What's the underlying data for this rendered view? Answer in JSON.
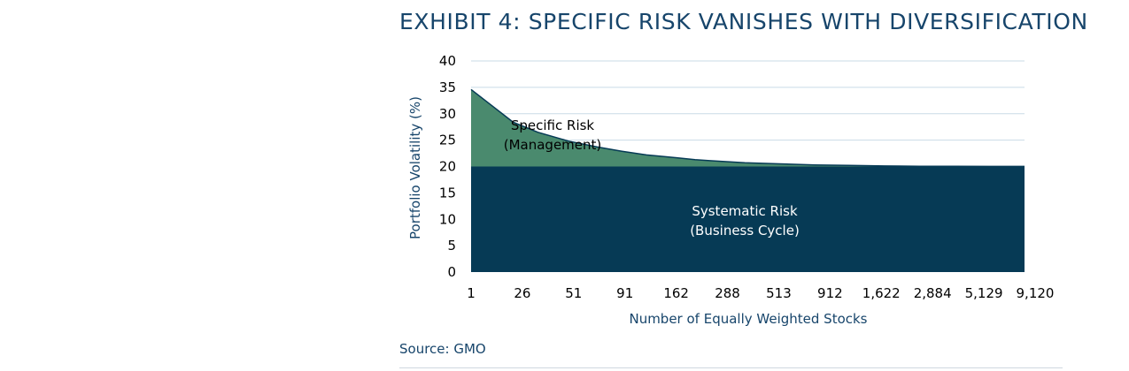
{
  "title": "EXHIBIT 4: SPECIFIC RISK VANISHES WITH DIVERSIFICATION",
  "source": "Source: GMO",
  "colors": {
    "systematic": "#063a55",
    "specific": "#4a8a6e",
    "grid": "#c9dbe6",
    "text": "#17456b",
    "label": "#ffffff",
    "label_dark": "#000000"
  },
  "chart_data": {
    "type": "area",
    "xlabel": "Number of Equally Weighted Stocks",
    "ylabel": "Portfolio Volatility (%)",
    "ylim": [
      0,
      40
    ],
    "yticks": [
      0,
      5,
      10,
      15,
      20,
      25,
      30,
      35,
      40
    ],
    "xticks": [
      "1",
      "26",
      "51",
      "91",
      "162",
      "288",
      "513",
      "912",
      "1,622",
      "2,884",
      "5,129",
      "9,120"
    ],
    "grid": true,
    "series": [
      {
        "name": "Systematic Risk (Business Cycle)",
        "label_lines": [
          "Systematic Risk",
          "(Business Cycle)"
        ],
        "constant": 20
      },
      {
        "name": "Specific Risk (Management)",
        "label_lines": [
          "Specific Risk",
          "(Management)"
        ],
        "total_risk_points": [
          [
            1,
            34.6
          ],
          [
            2,
            28.4
          ],
          [
            3,
            26.5
          ],
          [
            5,
            24.8
          ],
          [
            8,
            23.7
          ],
          [
            12,
            22.9
          ],
          [
            18,
            22.2
          ],
          [
            26,
            21.8
          ],
          [
            40,
            21.3
          ],
          [
            51,
            21.1
          ],
          [
            91,
            20.7
          ],
          [
            162,
            20.5
          ],
          [
            288,
            20.3
          ],
          [
            513,
            20.2
          ],
          [
            912,
            20.1
          ],
          [
            1622,
            20.05
          ],
          [
            2884,
            20.03
          ],
          [
            5129,
            20.02
          ],
          [
            9120,
            20.01
          ]
        ]
      }
    ]
  }
}
